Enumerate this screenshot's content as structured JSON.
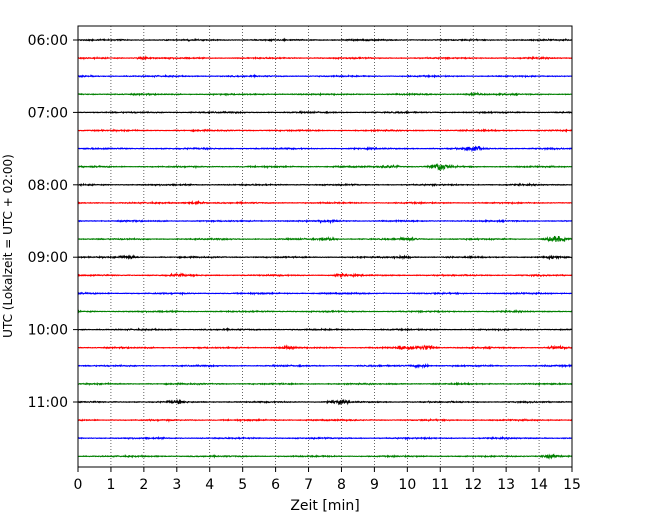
{
  "chart_data": {
    "type": "line",
    "xlabel": "Zeit  [min]",
    "ylabel": "UTC (Lokalzeit = UTC + 02:00)",
    "xlim": [
      0,
      15
    ],
    "x_ticks": [
      "0",
      "1",
      "2",
      "3",
      "4",
      "5",
      "6",
      "7",
      "8",
      "9",
      "10",
      "11",
      "12",
      "13",
      "14",
      "15"
    ],
    "y_ticks": [
      "06:00",
      "07:00",
      "08:00",
      "09:00",
      "10:00",
      "11:00"
    ],
    "grid": "vertical-dotted",
    "colors": [
      "#000000",
      "#ff0000",
      "#0000ff",
      "#008000"
    ],
    "row_minutes": 15,
    "rows_start": "06:00",
    "row_count": 24,
    "events": [
      {
        "row": 6,
        "x": 12.0,
        "amp": 0.18
      },
      {
        "row": 7,
        "x": 11.0,
        "amp": 0.28
      },
      {
        "row": 7,
        "x": 9.5,
        "amp": 0.1
      },
      {
        "row": 11,
        "x": 14.5,
        "amp": 0.22
      },
      {
        "row": 11,
        "x": 7.6,
        "amp": 0.08
      },
      {
        "row": 11,
        "x": 10.0,
        "amp": 0.08
      },
      {
        "row": 12,
        "x": 1.5,
        "amp": 0.1
      },
      {
        "row": 12,
        "x": 9.8,
        "amp": 0.08
      },
      {
        "row": 12,
        "x": 14.4,
        "amp": 0.08
      },
      {
        "row": 13,
        "x": 3.0,
        "amp": 0.08
      },
      {
        "row": 13,
        "x": 8.0,
        "amp": 0.08
      },
      {
        "row": 17,
        "x": 6.4,
        "amp": 0.1
      },
      {
        "row": 17,
        "x": 10.0,
        "amp": 0.18
      },
      {
        "row": 17,
        "x": 10.6,
        "amp": 0.18
      },
      {
        "row": 17,
        "x": 14.5,
        "amp": 0.1
      },
      {
        "row": 18,
        "x": 10.4,
        "amp": 0.1
      },
      {
        "row": 20,
        "x": 7.9,
        "amp": 0.12
      },
      {
        "row": 20,
        "x": 3.0,
        "amp": 0.08
      },
      {
        "row": 23,
        "x": 14.3,
        "amp": 0.1
      },
      {
        "row": 9,
        "x": 3.6,
        "amp": 0.08
      },
      {
        "row": 10,
        "x": 7.6,
        "amp": 0.08
      },
      {
        "row": 1,
        "x": 2.0,
        "amp": 0.06
      },
      {
        "row": 3,
        "x": 12.0,
        "amp": 0.06
      }
    ]
  }
}
